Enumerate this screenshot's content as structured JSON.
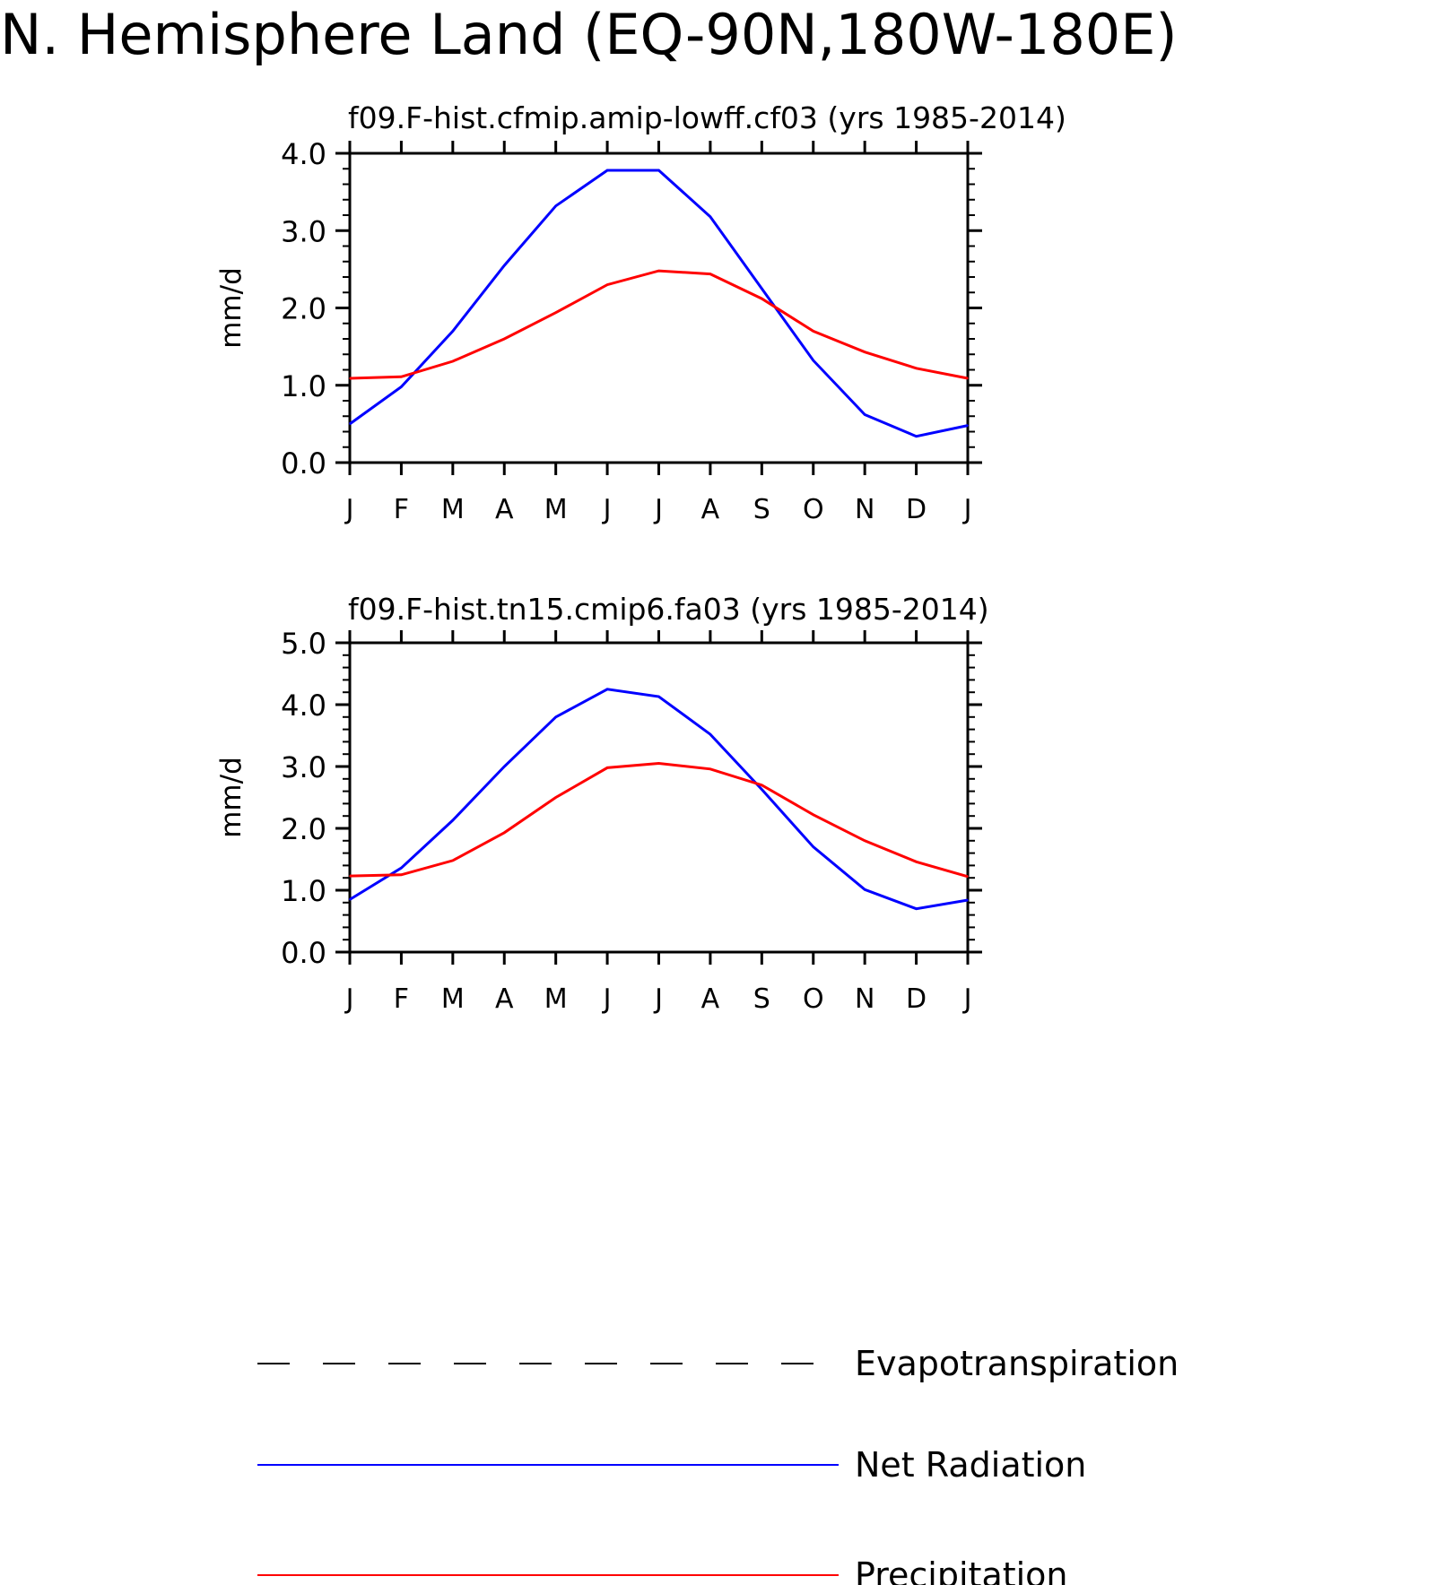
{
  "title": "N. Hemisphere Land (EQ-90N,180W-180E)",
  "colors": {
    "net_radiation": "#0000ff",
    "precipitation": "#ff0000",
    "evapotranspiration": "#000000",
    "axis": "#000000"
  },
  "chart_data": [
    {
      "type": "line",
      "title": "f09.F-hist.cfmip.amip-lowff.cf03 (yrs 1985-2014)",
      "xlabel": "",
      "ylabel": "mm/d",
      "categories": [
        "J",
        "F",
        "M",
        "A",
        "M",
        "J",
        "J",
        "A",
        "S",
        "O",
        "N",
        "D",
        "J"
      ],
      "ylim": [
        0,
        4
      ],
      "yticks": [
        "0.0",
        "1.0",
        "2.0",
        "3.0",
        "4.0"
      ],
      "grid": false,
      "series": [
        {
          "name": "Net Radiation",
          "color": "#0000ff",
          "values": [
            0.5,
            0.98,
            1.7,
            2.55,
            3.32,
            3.78,
            3.78,
            3.18,
            2.25,
            1.32,
            0.62,
            0.34,
            0.48
          ]
        },
        {
          "name": "Precipitation",
          "color": "#ff0000",
          "values": [
            1.09,
            1.11,
            1.31,
            1.6,
            1.94,
            2.3,
            2.48,
            2.44,
            2.12,
            1.7,
            1.43,
            1.22,
            1.09
          ]
        }
      ]
    },
    {
      "type": "line",
      "title": "f09.F-hist.tn15.cmip6.fa03 (yrs 1985-2014)",
      "xlabel": "",
      "ylabel": "mm/d",
      "categories": [
        "J",
        "F",
        "M",
        "A",
        "M",
        "J",
        "J",
        "A",
        "S",
        "O",
        "N",
        "D",
        "J"
      ],
      "ylim": [
        0,
        5
      ],
      "yticks": [
        "0.0",
        "1.0",
        "2.0",
        "3.0",
        "4.0",
        "5.0"
      ],
      "grid": false,
      "series": [
        {
          "name": "Net Radiation",
          "color": "#0000ff",
          "values": [
            0.85,
            1.36,
            2.13,
            3.0,
            3.8,
            4.25,
            4.13,
            3.52,
            2.63,
            1.7,
            1.01,
            0.7,
            0.84
          ]
        },
        {
          "name": "Precipitation",
          "color": "#ff0000",
          "values": [
            1.23,
            1.25,
            1.48,
            1.93,
            2.5,
            2.98,
            3.05,
            2.96,
            2.7,
            2.22,
            1.8,
            1.46,
            1.22
          ]
        }
      ]
    }
  ],
  "legend": {
    "items": [
      {
        "label": "Evapotranspiration",
        "style": "dashed",
        "color": "#000000"
      },
      {
        "label": "Net Radiation",
        "style": "solid",
        "color": "#0000ff"
      },
      {
        "label": "Precipitation",
        "style": "solid",
        "color": "#ff0000"
      }
    ]
  }
}
